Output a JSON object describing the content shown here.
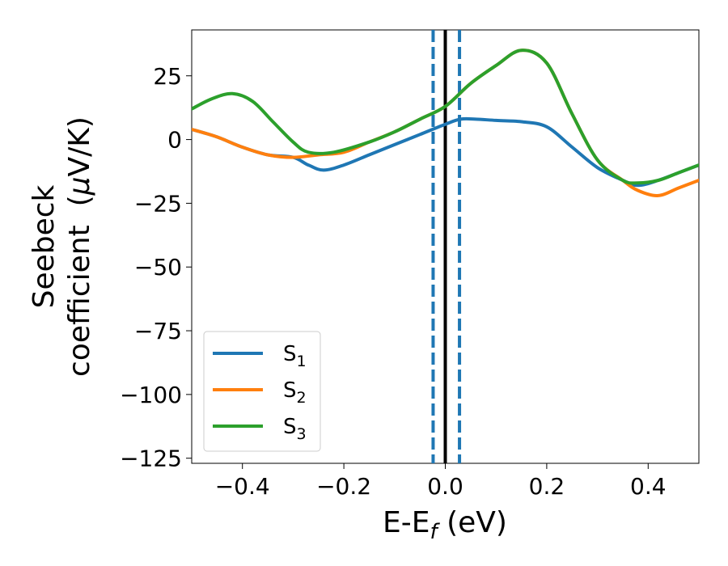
{
  "chart_data": {
    "type": "line",
    "title": "",
    "xlabel": "E-E",
    "xlabel_sub": "f",
    "xlabel_unit": " (eV)",
    "ylabel_line1": "Seebeck",
    "ylabel_line2": "coefficient  (",
    "ylabel_mu": "μ",
    "ylabel_unit_tail": "V/K)",
    "xlim": [
      -0.5,
      0.5
    ],
    "ylim": [
      -127,
      43
    ],
    "xticks": [
      -0.4,
      -0.2,
      0.0,
      0.2,
      0.4
    ],
    "xtick_labels": [
      "−0.4",
      "−0.2",
      "0.0",
      "0.2",
      "0.4"
    ],
    "yticks": [
      25,
      0,
      -25,
      -50,
      -75,
      -100,
      -125
    ],
    "ytick_labels": [
      "25",
      "0",
      "−25",
      "−50",
      "−75",
      "−100",
      "−125"
    ],
    "vlines": [
      {
        "x": -0.024,
        "style": "dashed",
        "color": "#1f77b4"
      },
      {
        "x": 0.0,
        "style": "solid",
        "color": "#000000"
      },
      {
        "x": 0.028,
        "style": "dashed",
        "color": "#1f77b4"
      }
    ],
    "legend_position": "lower-left",
    "series": [
      {
        "name": "S",
        "sub": "1",
        "color": "#1f77b4",
        "x": [
          -0.5,
          -0.45,
          -0.4,
          -0.35,
          -0.3,
          -0.27,
          -0.24,
          -0.2,
          -0.15,
          -0.1,
          -0.05,
          0.0,
          0.03,
          0.06,
          0.1,
          0.15,
          0.2,
          0.25,
          0.3,
          0.35,
          0.38,
          0.42,
          0.46,
          0.5
        ],
        "values": [
          4,
          1,
          -3,
          -6,
          -7,
          -10,
          -12,
          -10,
          -6,
          -2,
          2,
          6,
          8,
          8,
          7.5,
          7,
          5,
          -3,
          -11,
          -16,
          -18,
          -16,
          -13,
          -10
        ]
      },
      {
        "name": "S",
        "sub": "2",
        "color": "#ff7f0e",
        "x": [
          -0.5,
          -0.45,
          -0.4,
          -0.35,
          -0.3,
          -0.25,
          -0.2,
          -0.15,
          -0.1,
          -0.05,
          0.0,
          0.05,
          0.1,
          0.15,
          0.2,
          0.25,
          0.3,
          0.35,
          0.38,
          0.42,
          0.46,
          0.5
        ],
        "values": [
          4,
          1,
          -3,
          -6,
          -7,
          -6,
          -5,
          -1,
          3,
          8,
          13,
          22,
          29,
          35,
          30,
          10,
          -8,
          -16,
          -20,
          -22,
          -19,
          -16
        ]
      },
      {
        "name": "S",
        "sub": "3",
        "color": "#2ca02c",
        "x": [
          -0.5,
          -0.46,
          -0.42,
          -0.38,
          -0.34,
          -0.3,
          -0.27,
          -0.22,
          -0.15,
          -0.1,
          -0.05,
          0.0,
          0.05,
          0.1,
          0.15,
          0.2,
          0.25,
          0.3,
          0.35,
          0.38,
          0.42,
          0.46,
          0.5
        ],
        "values": [
          12,
          16,
          18,
          15,
          7,
          -1,
          -5,
          -5,
          -1,
          3,
          8,
          13,
          22,
          29,
          35,
          30,
          10,
          -8,
          -16,
          -17,
          -16,
          -13,
          -10
        ]
      }
    ]
  }
}
